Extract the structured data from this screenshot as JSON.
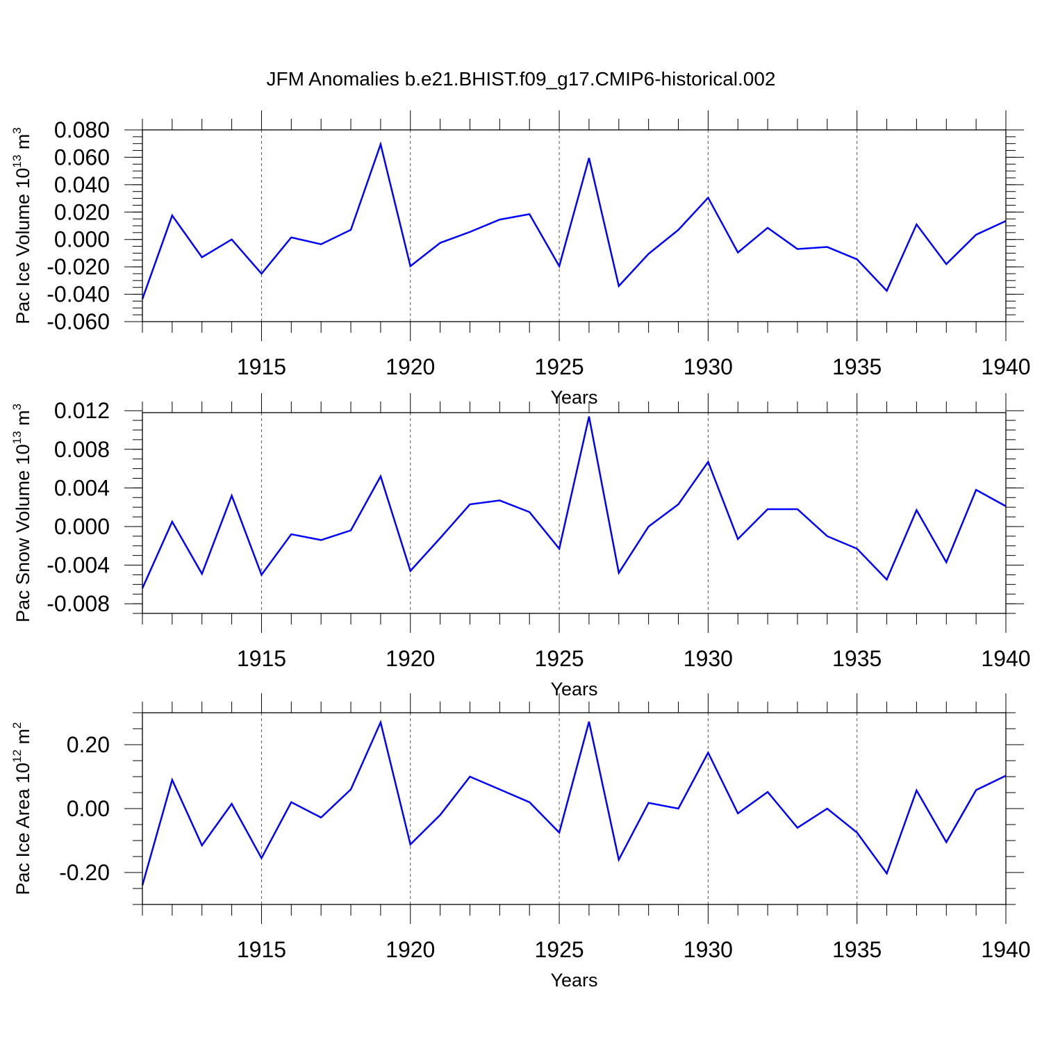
{
  "chart_data": {
    "title": "JFM Anomalies b.e21.BHIST.f09_g17.CMIP6-historical.002",
    "series_color": "#0000ff",
    "x": [
      1911,
      1912,
      1913,
      1914,
      1915,
      1916,
      1917,
      1918,
      1919,
      1920,
      1921,
      1922,
      1923,
      1924,
      1925,
      1926,
      1927,
      1928,
      1929,
      1930,
      1931,
      1932,
      1933,
      1934,
      1935,
      1936,
      1937,
      1938,
      1939,
      1940
    ],
    "xlim": [
      1911,
      1940
    ],
    "xticks": [
      "1915",
      "1920",
      "1925",
      "1930",
      "1935",
      "1940"
    ],
    "xgrid": [
      1915,
      1920,
      1925,
      1930,
      1935
    ],
    "panels": [
      {
        "type": "line",
        "ylabel_main": "Pac Ice Volume 10",
        "ylabel_exp": "13",
        "ylabel_unit": " m",
        "ylabel_unit_exp": "3",
        "xlabel": "Years",
        "ylim": [
          -0.06,
          0.08
        ],
        "yticks": [
          -0.06,
          -0.04,
          -0.02,
          0.0,
          0.02,
          0.04,
          0.06,
          0.08
        ],
        "ytick_labels": [
          "-0.060",
          "-0.040",
          "-0.020",
          "0.000",
          "0.020",
          "0.040",
          "0.060",
          "0.080"
        ],
        "yminor_step": 0.005,
        "values": [
          -0.0435,
          0.0175,
          -0.013,
          0.0,
          -0.025,
          0.0015,
          -0.0035,
          0.007,
          0.0695,
          -0.0195,
          -0.0025,
          0.0055,
          0.0145,
          0.0185,
          -0.0195,
          0.0595,
          -0.034,
          -0.0105,
          0.007,
          0.0305,
          -0.0095,
          0.0085,
          -0.007,
          -0.0055,
          -0.0145,
          -0.0375,
          0.011,
          -0.018,
          0.0035,
          0.0135
        ]
      },
      {
        "type": "line",
        "ylabel_main": "Pac Snow Volume 10",
        "ylabel_exp": "13",
        "ylabel_unit": " m",
        "ylabel_unit_exp": "3",
        "xlabel": "Years",
        "ylim": [
          -0.009,
          0.0118
        ],
        "yticks": [
          -0.008,
          -0.004,
          0.0,
          0.004,
          0.008,
          0.012
        ],
        "ytick_labels": [
          "-0.008",
          "-0.004",
          "0.000",
          "0.004",
          "0.008",
          "0.012"
        ],
        "yminor_step": 0.001,
        "values": [
          -0.0064,
          0.0005,
          -0.0049,
          0.0032,
          -0.005,
          -0.0008,
          -0.0014,
          -0.0004,
          0.0052,
          -0.0046,
          -0.0012,
          0.0023,
          0.0027,
          0.0015,
          -0.0023,
          0.0114,
          -0.0048,
          0.0,
          0.0023,
          0.0067,
          -0.0013,
          0.0018,
          0.0018,
          -0.001,
          -0.0023,
          -0.0055,
          0.0017,
          -0.0037,
          0.0038,
          0.0021
        ]
      },
      {
        "type": "line",
        "ylabel_main": "Pac Ice Area 10",
        "ylabel_exp": "12",
        "ylabel_unit": " m",
        "ylabel_unit_exp": "2",
        "xlabel": "Years",
        "ylim": [
          -0.3,
          0.3
        ],
        "yticks": [
          -0.2,
          0.0,
          0.2
        ],
        "ytick_labels": [
          "-0.20",
          "0.00",
          "0.20"
        ],
        "yminor_step": 0.05,
        "values": [
          -0.24,
          0.09,
          -0.115,
          0.015,
          -0.155,
          0.02,
          -0.028,
          0.06,
          0.27,
          -0.112,
          -0.02,
          0.1,
          0.06,
          0.02,
          -0.075,
          0.272,
          -0.16,
          0.018,
          0.0,
          0.175,
          -0.015,
          0.052,
          -0.06,
          0.0,
          -0.075,
          -0.203,
          0.057,
          -0.105,
          0.058,
          0.103
        ]
      }
    ]
  }
}
